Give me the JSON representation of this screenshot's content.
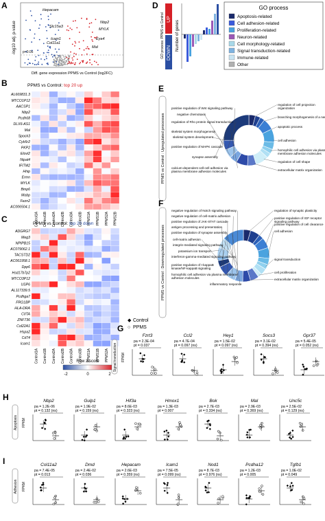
{
  "panelA": {
    "letter": "A",
    "ylabel": "-log10 adj. p-value",
    "xlabel": "Diff. gene expression PPMS vs Control (log2FC)",
    "threshold": "p<0.05",
    "genes_left": [
      "Hepacam",
      "Slc15a3",
      "Icam1",
      "Col11a1"
    ],
    "genes_right": [
      "Nbp2",
      "MYLK",
      "Eya4",
      "Mal"
    ],
    "colors": {
      "up": "#d62027",
      "down": "#2b4fa3",
      "ns": "#9e9e9e"
    }
  },
  "panelD": {
    "letter": "D",
    "rotated_label": "GO process: PPMS vs Control",
    "up_label": "UP",
    "down_label": "DOWN",
    "ylabel": "Number of genes",
    "legend_title": "GO process",
    "legend": [
      {
        "label": "Apoptosis-related",
        "color": "#1a2a6c"
      },
      {
        "label": "Cell adhesion-related",
        "color": "#3b5bdb"
      },
      {
        "label": "Proliferation-related",
        "color": "#4aa3df"
      },
      {
        "label": "Neuron-related",
        "color": "#9b59b6"
      },
      {
        "label": "Cell morphology-related",
        "color": "#a8d8e8"
      },
      {
        "label": "Signal transduction-related",
        "color": "#7fb3e0"
      },
      {
        "label": "Immune-related",
        "color": "#c9e4f2"
      },
      {
        "label": "Other",
        "color": "#b0b0b0"
      }
    ],
    "up_color": "#d62027",
    "down_color": "#2b4fa3"
  },
  "panelB": {
    "letter": "B",
    "title_prefix": "PPMS vs Control: ",
    "title_highlight": "top 20 up",
    "genes": [
      "AL669831.3",
      "MTCO1P12",
      "AACSP1",
      "Nbp2",
      "Pcdh68",
      "DLX6-AS1",
      "Mal",
      "Spock3",
      "Cyb5r2",
      "PKP2",
      "Elovl2",
      "Nipal4",
      "IFITM2",
      "Hhip",
      "Ermn",
      "MYLK",
      "Bmp6",
      "Mobp",
      "Fezn2",
      "AC006504.1"
    ],
    "samples": [
      "Control1A",
      "Control1B",
      "Control2A",
      "Control2B",
      "Control3A",
      "Control3B",
      "PPMS1A",
      "PPMS1B",
      "PPMS2A",
      "PPMS2B"
    ]
  },
  "panelC": {
    "letter": "C",
    "title_prefix": "PPMS vs Control: ",
    "title_highlight": "top 20 down",
    "genes": [
      "ADGRG7",
      "Meg3",
      "NPIPB15",
      "AC079062.1",
      "TACSTD2",
      "AC061958.1",
      "Dpp6",
      "Hsd17b7p2",
      "MTCO3P12",
      "USP6",
      "AL117339.5",
      "Pcdhga7",
      "FRG1BP",
      "HLA-DRA",
      "CIITA",
      "ZNF736",
      "Col22A1",
      "Hspa2",
      "Cd74",
      "Icam1"
    ],
    "samples": [
      "Control1A",
      "Control1B",
      "Control2A",
      "Control2B",
      "Control3A",
      "Control3B",
      "PPMS1A",
      "PPMS1B",
      "PPMS2A",
      "PPMS2B"
    ],
    "colorbar_label": "Row z-score",
    "colorbar_ticks": [
      "-2",
      "0",
      "2"
    ]
  },
  "panelE": {
    "letter": "E",
    "rotated_label": "PPMS vs Control : Upregulated processes",
    "labels_left": [
      "positive regulation of Wnt signaling pathway",
      "negative chemotaxis",
      "regulation of Rho protein signal transduction",
      "skeletal system morphogenesis",
      "skeletal system development",
      "positive regulation of MAPK cascade",
      "synapse assembly",
      "calcium-dependent cell-cell adhesion via plasma membrane adhesion molecules"
    ],
    "labels_right": [
      "regulation of cell projection organization",
      "branching morphogenesis of a nerve",
      "apoptotic process",
      "cell adhesion",
      "homophilic cell adhesion via plasma membrane adhesion molecules",
      "regulation of cell shape",
      "extracellular matrix organization"
    ]
  },
  "panelF": {
    "letter": "F",
    "rotated_label": "PPMS vs Control : Downregulated processes",
    "labels_left": [
      "negative regulation of Notch signaling pathway",
      "negative regulation of cell-matrix adhesion",
      "positive regulation of JAK-STAT cascade",
      "antigen processing and presentation",
      "positive regulation of synapse assembly",
      "cell-matrix adhesion",
      "integrin-mediated signaling pathway",
      "potassium ion transport",
      "interferon-gamma-mediated signaling pathway",
      "positive regulation of I-kappaB kinase/NF-kappaB signaling",
      "homophilic cell adhesion via plasma membrane adhesion molecules",
      "inflammatory response"
    ],
    "labels_right": [
      "regulation of synaptic plasticity",
      "positive regulation of IGF receptor signaling pathway",
      "positive regulation of cell clearance",
      "cell adhesion",
      "signal transduction",
      "cell proliferation",
      "extracellular matrix organization"
    ]
  },
  "panelG": {
    "letter": "G",
    "legend_control": "Control",
    "legend_ppms": "PPMS",
    "row_label": "Signal transduction",
    "ylabel": "FPKM",
    "genes": [
      {
        "name": "Fzrt3",
        "pa": "pa = 2.3E-04",
        "pt": "pt = 0.037"
      },
      {
        "name": "Ccl2",
        "pa": "pa = 4.7E-04",
        "pt": "pt = 0.097 (ns)"
      },
      {
        "name": "Hey1",
        "pa": "pa = 1.5E-02",
        "pt": "pt = 0.097 (ns)"
      },
      {
        "name": "Socs3",
        "pa": "pa = 3.1E-02",
        "pt": "pt = 0.394 (ns)"
      },
      {
        "name": "Gpr37",
        "pa": "pa = 5.4E-05",
        "pt": "pt = 0.052 (ns)"
      }
    ]
  },
  "panelH": {
    "letter": "H",
    "row_label": "Apoptosis",
    "ylabel": "FPKM",
    "genes": [
      {
        "name": "Nbp2",
        "pa": "pa = 1.2E-06",
        "pt": "pt = 0.132 (ns)"
      },
      {
        "name": "Gulp1",
        "pa": "pa = 1.9E-02",
        "pt": "pt = 0.159 (ns)"
      },
      {
        "name": "Hif3a",
        "pa": "pa = 8.6E-03",
        "pt": "pt = 0.323 (ns)"
      },
      {
        "name": "Hmox1",
        "pa": "pa = 1.3E-03",
        "pt": "pt = 0.007"
      },
      {
        "name": "Bok",
        "pa": "pa = 2.7E-03",
        "pt": "pt = 0.334 (ns)"
      },
      {
        "name": "Mal",
        "pa": "pa = 2.9E-03",
        "pt": "pt = 0.369 (ns)"
      },
      {
        "name": "Unc5c",
        "pa": "pa = 2.5E-02",
        "pt": "pt = 0.129 (ns)"
      }
    ]
  },
  "panelI": {
    "letter": "I",
    "row_label": "Adhesion",
    "ylabel": "FPKM",
    "genes": [
      {
        "name": "Col11a2",
        "pa": "pa = 7.4E-05",
        "pt": "pt = 0.013"
      },
      {
        "name": "Dmd",
        "pa": "pa = 2.4E-02",
        "pt": "pt = 0.036"
      },
      {
        "name": "Hepacam",
        "pa": "pa = 2.6E-03",
        "pt": "pt = 0.359 (ns)"
      },
      {
        "name": "Icam1",
        "pa": "pa = 7.5E-05",
        "pt": "pt = 0.099 (ns)"
      },
      {
        "name": "Nod1",
        "pa": "pa = 8.7E-03",
        "pt": "pt = 0.976 (ns)"
      },
      {
        "name": "Pcdha12",
        "pa": "pa = 1.2E-03",
        "pt": "pt = 0.005"
      },
      {
        "name": "Tgfb1",
        "pa": "pa = 1.0E-02",
        "pt": "pt = 0.049"
      }
    ]
  }
}
